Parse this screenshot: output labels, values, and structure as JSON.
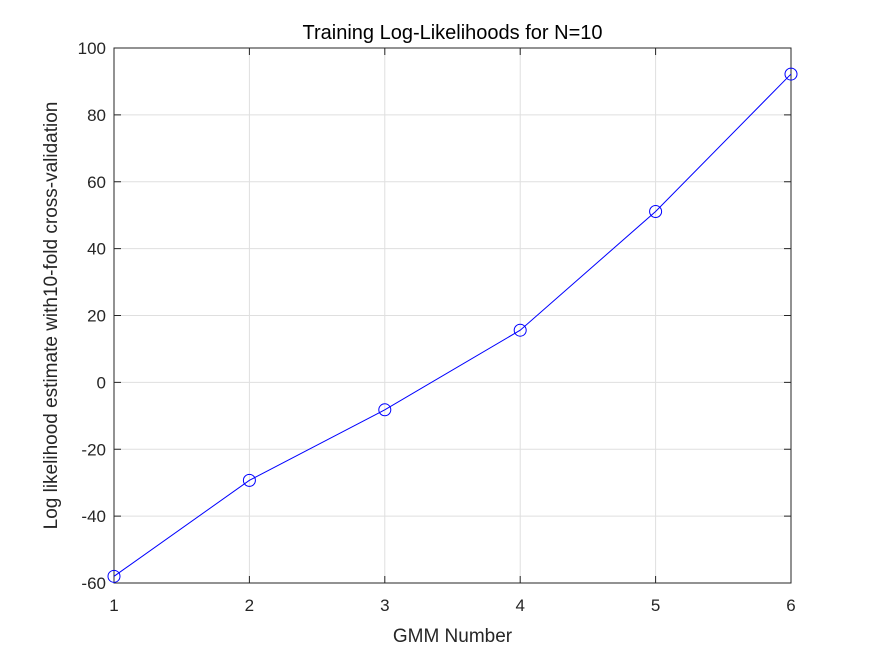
{
  "chart_data": {
    "type": "line",
    "title": "Training Log-Likelihoods for N=10",
    "xlabel": "GMM Number",
    "ylabel": "Log likelihood estimate with10-fold cross-validation",
    "x": [
      1,
      2,
      3,
      4,
      5,
      6
    ],
    "xticks": [
      1,
      2,
      3,
      4,
      5,
      6
    ],
    "yticks": [
      -60,
      -40,
      -20,
      0,
      20,
      40,
      60,
      80,
      100
    ],
    "xlim": [
      1,
      6
    ],
    "ylim": [
      -60,
      100
    ],
    "grid": true,
    "legend": "none",
    "series": [
      {
        "values": [
          -58,
          -29.3,
          -8.2,
          15.6,
          51.1,
          92.2
        ],
        "color": "#0000ff",
        "marker": "circle-open"
      }
    ]
  }
}
